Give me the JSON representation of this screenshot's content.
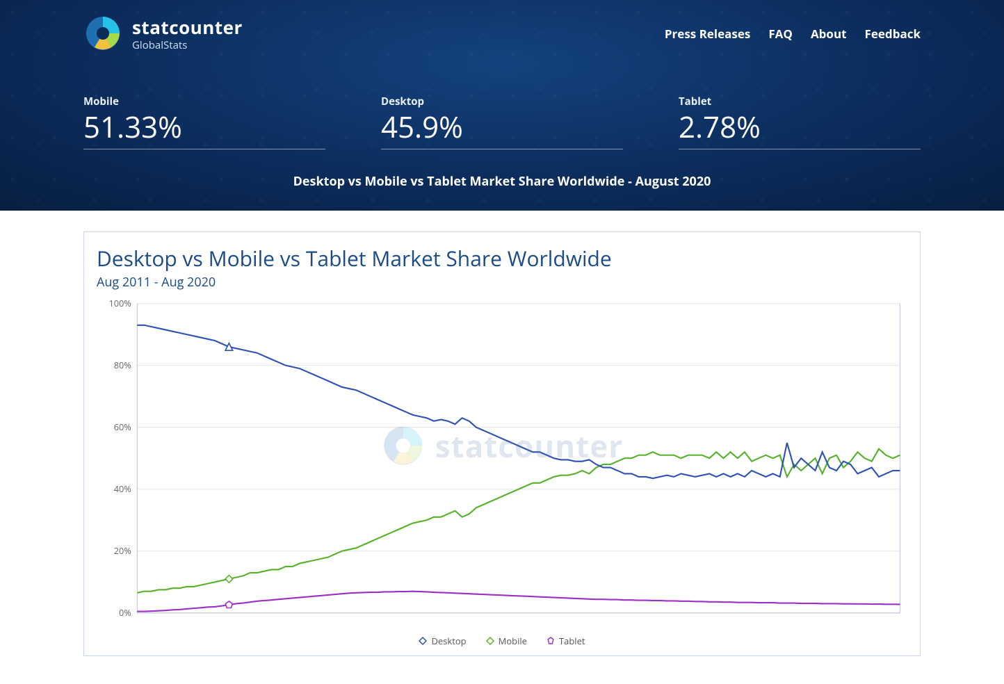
{
  "brand": {
    "name": "statcounter",
    "sub": "GlobalStats"
  },
  "nav": {
    "press": "Press Releases",
    "faq": "FAQ",
    "about": "About",
    "feedback": "Feedback"
  },
  "stats": [
    {
      "label": "Mobile",
      "value": "51.33%"
    },
    {
      "label": "Desktop",
      "value": "45.9%"
    },
    {
      "label": "Tablet",
      "value": "2.78%"
    }
  ],
  "hero_title": "Desktop vs Mobile vs Tablet Market Share Worldwide - August 2020",
  "chart": {
    "type": "line",
    "title": "Desktop vs Mobile vs Tablet Market Share Worldwide",
    "subtitle": "Aug 2011 - Aug 2020",
    "ylabel_suffix": "%",
    "ylim": [
      0,
      100
    ],
    "ytick_step": 20,
    "yticks": [
      "0%",
      "20%",
      "40%",
      "60%",
      "80%",
      "100%"
    ],
    "background_color": "#ffffff",
    "grid_color": "#e5e5e5",
    "axis_color": "#bfc8d6",
    "tick_font_color": "#666666",
    "tick_fontsize": 12,
    "title_color": "#1b4b8a",
    "title_fontsize": 30,
    "subtitle_fontsize": 18,
    "x_range_months": 109,
    "marker_month_index": 13,
    "watermark_text": "statcounter",
    "watermark_opacity": 0.18,
    "colors": {
      "desktop": "#2e51b5",
      "mobile": "#56b22a",
      "tablet": "#9b30c9"
    },
    "line_width": 2,
    "legend_labels": {
      "desktop": "Desktop",
      "mobile": "Mobile",
      "tablet": "Tablet"
    },
    "legend_marker": {
      "desktop": "diamond",
      "mobile": "diamond",
      "tablet": "pentagon"
    },
    "series": {
      "desktop": [
        93,
        93,
        92.5,
        92,
        91.5,
        91,
        90.5,
        90,
        89.5,
        89,
        88.5,
        88,
        87,
        86,
        85.5,
        85,
        84.5,
        84,
        83,
        82,
        81,
        80,
        79.5,
        79,
        78,
        77,
        76,
        75,
        74,
        73,
        72.5,
        72,
        71,
        70,
        69,
        68,
        67,
        66,
        65,
        64,
        63.5,
        63,
        62,
        62.5,
        62,
        61,
        63,
        62,
        60,
        59,
        58,
        57,
        56,
        55,
        54,
        53,
        52,
        52,
        51,
        50,
        49.5,
        49.5,
        49,
        49,
        49.5,
        48,
        47,
        47,
        46,
        45,
        45,
        44,
        44,
        43.5,
        44,
        44.5,
        44,
        45,
        44.5,
        44,
        44.5,
        45,
        44,
        45,
        44,
        45,
        44,
        46,
        45,
        44,
        45,
        44,
        55,
        47,
        50,
        48,
        46,
        52,
        47,
        46,
        49,
        48,
        45,
        46,
        47,
        44,
        45,
        46,
        46
      ],
      "mobile": [
        6.5,
        7,
        7,
        7.5,
        7.5,
        8,
        8,
        8.5,
        8.5,
        9,
        9.5,
        10,
        10.5,
        11,
        11.5,
        12,
        13,
        13,
        13.5,
        14,
        14,
        15,
        15,
        16,
        16.5,
        17,
        17.5,
        18,
        19,
        20,
        20.5,
        21,
        22,
        23,
        24,
        25,
        26,
        27,
        28,
        29,
        29.5,
        30,
        31,
        31,
        32,
        33,
        31,
        32,
        34,
        35,
        36,
        37,
        38,
        39,
        40,
        41,
        42,
        42,
        43,
        44,
        44.5,
        44.5,
        45,
        46,
        45,
        47,
        48,
        48,
        49,
        50,
        50,
        51,
        51,
        52,
        51,
        51,
        51,
        50,
        51,
        51,
        51,
        50,
        52,
        50,
        52,
        50,
        52,
        49,
        50,
        51,
        50,
        51,
        44,
        48,
        46,
        48,
        50,
        45,
        50,
        51,
        47,
        49,
        52,
        50,
        49,
        53,
        51,
        50,
        51
      ],
      "tablet": [
        0.5,
        0.5,
        0.6,
        0.7,
        0.8,
        1,
        1.1,
        1.3,
        1.5,
        1.7,
        1.9,
        2,
        2.3,
        2.6,
        3,
        3.2,
        3.5,
        3.8,
        4,
        4.2,
        4.4,
        4.6,
        4.8,
        5,
        5.2,
        5.4,
        5.6,
        5.8,
        6,
        6.2,
        6.4,
        6.5,
        6.6,
        6.7,
        6.7,
        6.8,
        6.8,
        6.9,
        6.9,
        7,
        6.9,
        6.8,
        6.7,
        6.6,
        6.5,
        6.4,
        6.3,
        6.2,
        6.1,
        6,
        5.9,
        5.8,
        5.7,
        5.6,
        5.5,
        5.4,
        5.3,
        5.2,
        5.1,
        5,
        4.9,
        4.8,
        4.7,
        4.6,
        4.5,
        4.4,
        4.4,
        4.3,
        4.3,
        4.2,
        4.2,
        4.1,
        4.1,
        4,
        4,
        3.9,
        3.9,
        3.8,
        3.8,
        3.7,
        3.7,
        3.6,
        3.6,
        3.5,
        3.5,
        3.4,
        3.4,
        3.4,
        3.3,
        3.3,
        3.3,
        3.2,
        3.2,
        3.2,
        3.1,
        3.1,
        3.1,
        3.0,
        3.0,
        3.0,
        2.95,
        2.95,
        2.9,
        2.9,
        2.85,
        2.85,
        2.8,
        2.8,
        2.78
      ]
    }
  }
}
